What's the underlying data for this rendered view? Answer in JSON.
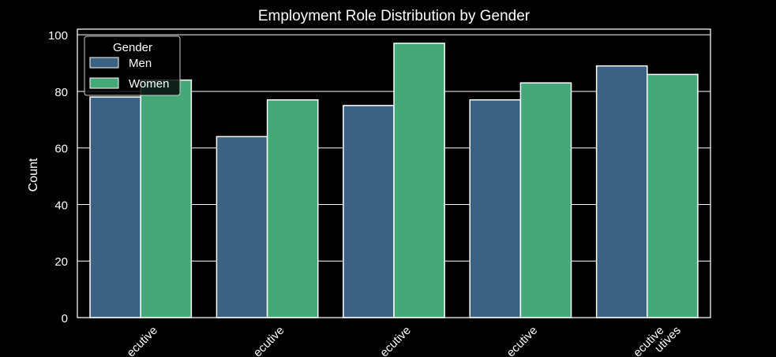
{
  "chart_data": {
    "type": "bar",
    "title": "Employment Role Distribution by Gender",
    "xlabel": "",
    "ylabel": "Count",
    "ylim": [
      0,
      102
    ],
    "yticks": [
      0,
      20,
      40,
      60,
      80,
      100
    ],
    "grid": true,
    "legend": {
      "title": "Gender",
      "position": "top-left"
    },
    "categories": [
      "ecutive",
      "ecutive",
      "ecutive",
      "ecutive",
      "ecutive"
    ],
    "extra_tick_labels": [
      "utives"
    ],
    "series": [
      {
        "name": "Men",
        "color": "#3b6282",
        "values": [
          78,
          64,
          75,
          77,
          89
        ]
      },
      {
        "name": "Women",
        "color": "#44a878",
        "values": [
          84,
          77,
          97,
          83,
          86
        ]
      }
    ]
  }
}
